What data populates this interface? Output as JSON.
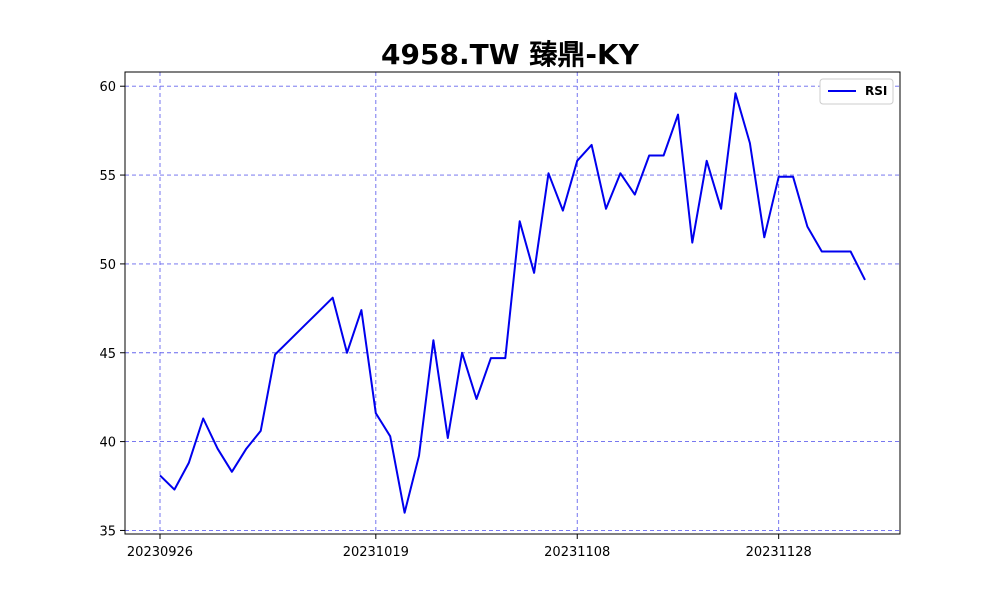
{
  "chart_data": {
    "type": "line",
    "title": "4958.TW 臻鼎-KY",
    "xlabel": "",
    "ylabel": "",
    "x": [
      "20230926",
      "20230927",
      "20230928",
      "20230929",
      "20231002",
      "20231003",
      "20231004",
      "20231005",
      "20231006",
      "20231011",
      "20231012",
      "20231013",
      "20231016",
      "20231017",
      "20231018",
      "20231019",
      "20231020",
      "20231023",
      "20231024",
      "20231025",
      "20231026",
      "20231027",
      "20231030",
      "20231031",
      "20231101",
      "20231102",
      "20231103",
      "20231106",
      "20231107",
      "20231108",
      "20231109",
      "20231110",
      "20231113",
      "20231114",
      "20231115",
      "20231116",
      "20231117",
      "20231120",
      "20231121",
      "20231122",
      "20231123",
      "20231124",
      "20231127",
      "20231128",
      "20231129",
      "20231130",
      "20231201",
      "20231204",
      "20231205",
      "20231206"
    ],
    "x_ticks": [
      "20230926",
      "20231019",
      "20231108",
      "20231128"
    ],
    "y_ticks": [
      35,
      40,
      45,
      50,
      55,
      60
    ],
    "ylim": [
      34.8,
      60.8
    ],
    "grid": true,
    "legend_position": "top-right",
    "series": [
      {
        "name": "RSI",
        "color": "#0000ee",
        "values": [
          38.1,
          37.3,
          38.8,
          41.3,
          39.6,
          38.3,
          39.6,
          40.6,
          44.9,
          45.7,
          46.5,
          47.3,
          48.1,
          45.0,
          47.4,
          41.6,
          40.3,
          36.0,
          39.2,
          45.7,
          40.2,
          45.0,
          42.4,
          44.7,
          44.7,
          52.4,
          49.5,
          55.1,
          53.0,
          55.8,
          56.7,
          53.1,
          55.1,
          53.9,
          56.1,
          56.1,
          58.4,
          51.2,
          55.8,
          53.1,
          59.6,
          56.8,
          51.5,
          54.9,
          54.9,
          52.1,
          50.7,
          50.7,
          50.7,
          49.1
        ]
      }
    ]
  }
}
